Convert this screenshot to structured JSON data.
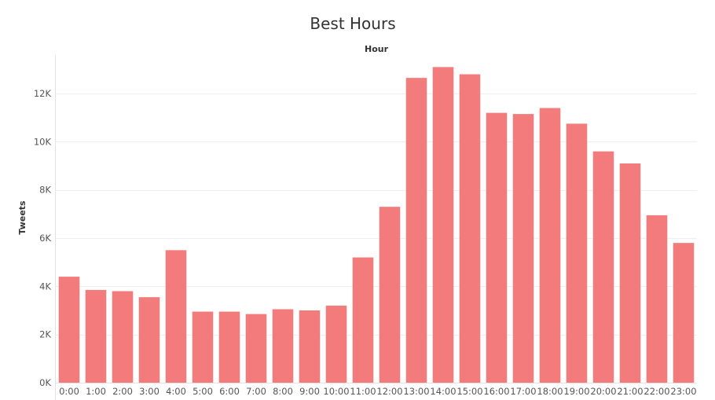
{
  "chart_data": {
    "type": "bar",
    "title": "Best Hours",
    "column_header": "Hour",
    "ylabel": "Tweets",
    "xlabel": "",
    "categories": [
      "0:00",
      "1:00",
      "2:00",
      "3:00",
      "4:00",
      "5:00",
      "6:00",
      "7:00",
      "8:00",
      "9:00",
      "10:00",
      "11:00",
      "12:00",
      "13:00",
      "14:00",
      "15:00",
      "16:00",
      "17:00",
      "18:00",
      "19:00",
      "20:00",
      "21:00",
      "22:00",
      "23:00"
    ],
    "values": [
      4400,
      3850,
      3800,
      3550,
      5500,
      2950,
      2950,
      2850,
      3050,
      3000,
      3200,
      5200,
      7300,
      12650,
      13100,
      12800,
      11200,
      11150,
      11400,
      10750,
      9600,
      9100,
      6950,
      5800
    ],
    "ylim": [
      0,
      13600
    ],
    "yticks": [
      {
        "value": 0,
        "label": "0K"
      },
      {
        "value": 2000,
        "label": "2K"
      },
      {
        "value": 4000,
        "label": "4K"
      },
      {
        "value": 6000,
        "label": "6K"
      },
      {
        "value": 8000,
        "label": "8K"
      },
      {
        "value": 10000,
        "label": "10K"
      },
      {
        "value": 12000,
        "label": "12K"
      }
    ],
    "bar_color": "#f47b7b",
    "grid": true,
    "legend": "none"
  }
}
